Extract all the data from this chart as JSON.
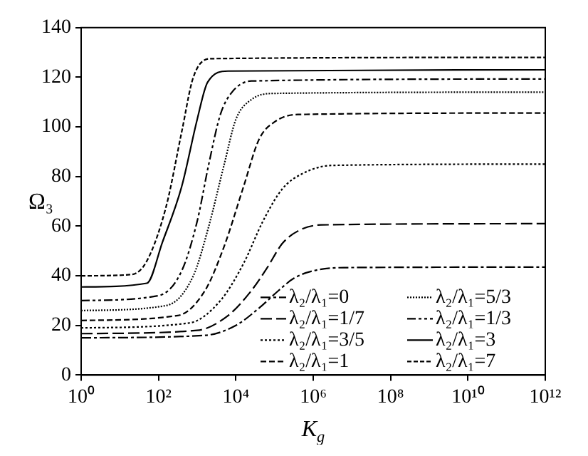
{
  "chart_data": {
    "type": "line",
    "xlabel": "K$_{g}$",
    "ylabel": "Ω₃",
    "log": "x",
    "xlim": [
      1,
      1000000000000
    ],
    "ylim": [
      0,
      140
    ],
    "xticks": [
      {
        "value": 1,
        "label": "10⁰"
      },
      {
        "value": 100,
        "label": "10²"
      },
      {
        "value": 10000,
        "label": "10⁴"
      },
      {
        "value": 1000000,
        "label": "10⁶"
      },
      {
        "value": 100000000,
        "label": "10⁸"
      },
      {
        "value": 10000000000,
        "label": "10¹⁰"
      },
      {
        "value": 1000000000000,
        "label": "10¹²"
      }
    ],
    "yticks": [
      0,
      20,
      40,
      60,
      80,
      100,
      120,
      140
    ],
    "grid": false,
    "legend": "bottom right",
    "marker": "none",
    "series": [
      {
        "name": "λ₂/λ₁=0",
        "color": "#000000",
        "line_style": "dashed",
        "x": [
          1,
          1585,
          10000,
          39811,
          125893,
          316228,
          1000000,
          6309573,
          1000000000000
        ],
        "values": [
          15,
          16,
          20,
          27,
          34,
          39,
          42,
          43.3,
          43.5
        ]
      },
      {
        "name": "λ₂/λ₁=1/7",
        "color": "#000000",
        "line_style": "dashed",
        "x": [
          1,
          1000,
          6310,
          25119,
          63096,
          158489,
          398107,
          1584893,
          1000000000000
        ],
        "values": [
          16.7,
          18,
          24,
          34,
          43,
          53,
          58,
          60.5,
          61
        ]
      },
      {
        "name": "λ₂/λ₁=3/5",
        "color": "#000000",
        "line_style": "dotted",
        "x": [
          1,
          631,
          3981,
          15849,
          50119,
          158489,
          501187,
          3162278,
          1000000000000
        ],
        "values": [
          19,
          21,
          30,
          45,
          62,
          75,
          81,
          84.5,
          85
        ]
      },
      {
        "name": "λ₂/λ₁=1",
        "color": "#000000",
        "line_style": "dashed",
        "x": [
          1,
          316,
          1585,
          5012,
          15849,
          39811,
          100000,
          398107,
          1000000000000
        ],
        "values": [
          22,
          24,
          34,
          52,
          76,
          95,
          102,
          105,
          105.6
        ]
      },
      {
        "name": "λ₂/λ₁=5/3",
        "color": "#000000",
        "line_style": "dotted",
        "x": [
          1,
          158,
          794,
          1995,
          5012,
          10000,
          25119,
          100000,
          1000000000000
        ],
        "values": [
          26,
          28,
          40,
          60,
          85,
          103,
          111,
          113.5,
          114
        ]
      },
      {
        "name": "λ₂/λ₁=1/3",
        "color": "#000000",
        "line_style": "dashed",
        "x": [
          1,
          100,
          398,
          1000,
          1995,
          3981,
          7943,
          25119,
          1000000000000
        ],
        "values": [
          30,
          32,
          42,
          62,
          85,
          105,
          114,
          118.5,
          119.3
        ]
      },
      {
        "name": "λ₂/λ₁=3",
        "color": "#000000",
        "line_style": "solid",
        "x": [
          1,
          50,
          126,
          398,
          1000,
          1862,
          6310,
          1000000000000
        ],
        "values": [
          35.5,
          37,
          53.5,
          76,
          103,
          118,
          122.5,
          123
        ]
      },
      {
        "name": "λ₂/λ₁=7",
        "color": "#000000",
        "line_style": "dashed",
        "x": [
          1,
          20,
          50,
          158,
          398,
          794,
          2239,
          1000000000000
        ],
        "values": [
          40,
          40.5,
          46,
          68,
          98,
          120,
          127.5,
          128
        ]
      }
    ]
  }
}
